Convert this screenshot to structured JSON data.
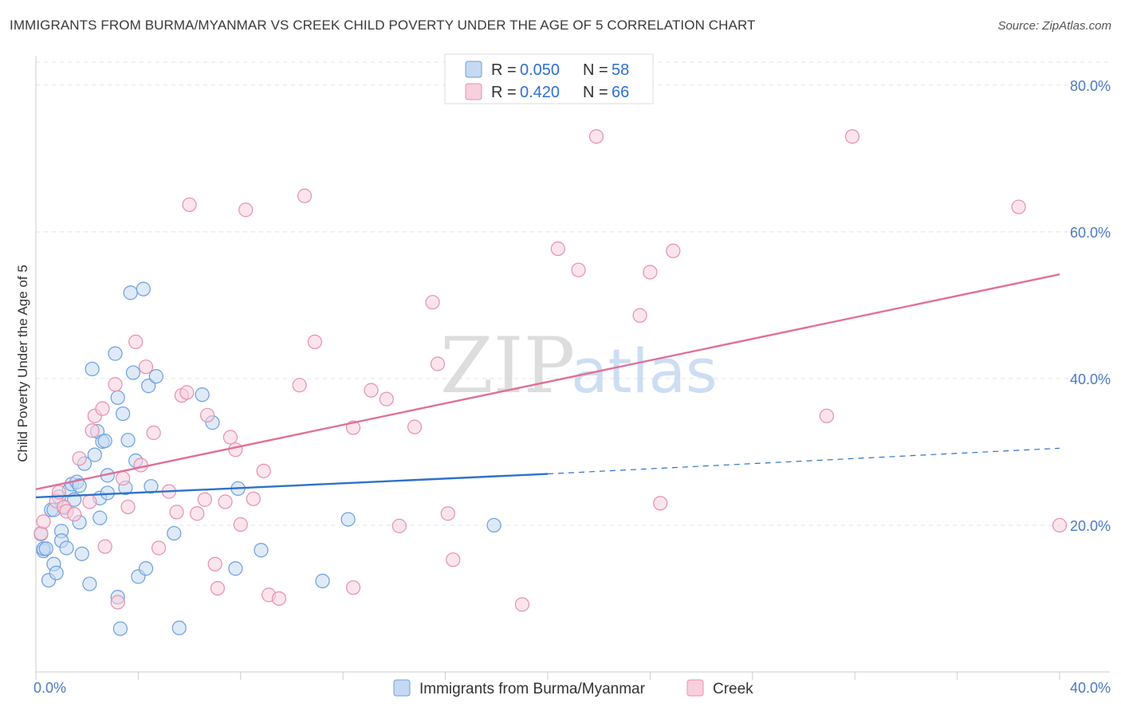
{
  "header": {
    "title": "IMMIGRANTS FROM BURMA/MYANMAR VS CREEK CHILD POVERTY UNDER THE AGE OF 5 CORRELATION CHART",
    "source": "Source: ZipAtlas.com"
  },
  "watermark": {
    "zip": "ZIP",
    "atlas": "atlas"
  },
  "chart_data": {
    "type": "scatter",
    "title": "IMMIGRANTS FROM BURMA/MYANMAR VS CREEK CHILD POVERTY UNDER THE AGE OF 5 CORRELATION CHART",
    "xlabel": "",
    "ylabel": "Child Poverty Under the Age of 5",
    "xlim": [
      0,
      40
    ],
    "ylim": [
      0,
      84
    ],
    "x_tick_labels": [
      "0.0%",
      "40.0%"
    ],
    "y_ticks": [
      20,
      40,
      60,
      80
    ],
    "y_tick_labels": [
      "20.0%",
      "40.0%",
      "60.0%",
      "80.0%"
    ],
    "grid": true,
    "legend_placement": "top-center",
    "stats": [
      {
        "r_label": "R =",
        "r": "0.050",
        "n_label": "N =",
        "n": "58"
      },
      {
        "r_label": "R =",
        "r": "0.420",
        "n_label": "N =",
        "n": "66"
      }
    ],
    "series": [
      {
        "name": "Immigrants from Burma/Myanmar",
        "color": "#6a9fe0",
        "fill": "#c5d9f3",
        "line_color": "#2d72c9",
        "trend": {
          "x0": 0,
          "y0": 23.8,
          "x1": 20,
          "y1": 27.0,
          "dash_to_x": 40,
          "dash_to_y": 30.5
        },
        "points": [
          [
            0.2,
            18.8
          ],
          [
            0.3,
            16.5
          ],
          [
            0.3,
            16.8
          ],
          [
            0.4,
            16.8
          ],
          [
            0.5,
            12.5
          ],
          [
            0.6,
            22.1
          ],
          [
            0.7,
            22.1
          ],
          [
            0.7,
            14.7
          ],
          [
            0.8,
            13.5
          ],
          [
            0.9,
            23.9
          ],
          [
            1.0,
            19.2
          ],
          [
            1.0,
            17.9
          ],
          [
            1.1,
            22.4
          ],
          [
            1.2,
            16.9
          ],
          [
            1.3,
            24.8
          ],
          [
            1.4,
            25.6
          ],
          [
            1.5,
            23.5
          ],
          [
            1.6,
            25.9
          ],
          [
            1.7,
            25.4
          ],
          [
            1.7,
            20.4
          ],
          [
            1.8,
            16.1
          ],
          [
            1.9,
            28.4
          ],
          [
            2.1,
            12.0
          ],
          [
            2.2,
            41.3
          ],
          [
            2.3,
            29.6
          ],
          [
            2.4,
            32.8
          ],
          [
            2.5,
            21.0
          ],
          [
            2.5,
            23.7
          ],
          [
            2.6,
            31.4
          ],
          [
            2.7,
            31.5
          ],
          [
            2.8,
            24.4
          ],
          [
            2.8,
            26.8
          ],
          [
            3.1,
            43.4
          ],
          [
            3.2,
            37.4
          ],
          [
            3.2,
            10.2
          ],
          [
            3.3,
            5.9
          ],
          [
            3.4,
            35.2
          ],
          [
            3.5,
            25.1
          ],
          [
            3.6,
            31.6
          ],
          [
            3.7,
            51.7
          ],
          [
            3.8,
            40.8
          ],
          [
            3.9,
            28.8
          ],
          [
            4.0,
            13.0
          ],
          [
            4.2,
            52.2
          ],
          [
            4.3,
            14.1
          ],
          [
            4.4,
            39.0
          ],
          [
            4.5,
            25.3
          ],
          [
            4.7,
            40.3
          ],
          [
            5.4,
            18.9
          ],
          [
            5.6,
            6.0
          ],
          [
            6.5,
            37.8
          ],
          [
            6.9,
            34.0
          ],
          [
            7.8,
            14.1
          ],
          [
            7.9,
            25.0
          ],
          [
            8.8,
            16.6
          ],
          [
            11.2,
            12.4
          ],
          [
            12.2,
            20.8
          ],
          [
            17.9,
            20.0
          ]
        ]
      },
      {
        "name": "Creek",
        "color": "#e890ab",
        "fill": "#f8cfdc",
        "line_color": "#e0709a",
        "trend": {
          "x0": 0,
          "y0": 24.9,
          "x1": 40,
          "y1": 54.2
        },
        "points": [
          [
            0.2,
            18.9
          ],
          [
            0.3,
            20.5
          ],
          [
            0.8,
            23.3
          ],
          [
            0.9,
            24.5
          ],
          [
            1.1,
            22.5
          ],
          [
            1.2,
            21.9
          ],
          [
            1.5,
            21.5
          ],
          [
            1.7,
            29.1
          ],
          [
            2.1,
            23.2
          ],
          [
            2.2,
            32.9
          ],
          [
            2.3,
            34.9
          ],
          [
            2.6,
            35.9
          ],
          [
            2.7,
            17.1
          ],
          [
            3.1,
            39.2
          ],
          [
            3.2,
            9.5
          ],
          [
            3.4,
            26.4
          ],
          [
            3.6,
            22.5
          ],
          [
            3.9,
            45.0
          ],
          [
            4.1,
            28.2
          ],
          [
            4.3,
            41.6
          ],
          [
            4.6,
            32.6
          ],
          [
            4.8,
            16.9
          ],
          [
            5.2,
            24.6
          ],
          [
            5.5,
            21.8
          ],
          [
            5.7,
            37.7
          ],
          [
            5.9,
            38.1
          ],
          [
            6.0,
            63.7
          ],
          [
            6.3,
            21.6
          ],
          [
            6.6,
            23.5
          ],
          [
            6.7,
            35.0
          ],
          [
            7.0,
            14.7
          ],
          [
            7.1,
            11.4
          ],
          [
            7.4,
            23.2
          ],
          [
            7.6,
            32.0
          ],
          [
            7.8,
            30.3
          ],
          [
            8.0,
            20.1
          ],
          [
            8.2,
            63.0
          ],
          [
            8.5,
            23.6
          ],
          [
            8.9,
            27.4
          ],
          [
            9.1,
            10.5
          ],
          [
            9.5,
            10.0
          ],
          [
            10.3,
            39.1
          ],
          [
            10.5,
            64.9
          ],
          [
            10.9,
            45.0
          ],
          [
            12.4,
            11.5
          ],
          [
            12.4,
            33.3
          ],
          [
            13.1,
            38.4
          ],
          [
            13.7,
            37.2
          ],
          [
            14.2,
            19.9
          ],
          [
            14.8,
            33.4
          ],
          [
            15.5,
            50.4
          ],
          [
            15.7,
            42.0
          ],
          [
            16.1,
            21.6
          ],
          [
            16.3,
            15.3
          ],
          [
            19.0,
            9.2
          ],
          [
            20.4,
            57.7
          ],
          [
            21.2,
            54.8
          ],
          [
            21.9,
            73.0
          ],
          [
            23.6,
            48.6
          ],
          [
            24.0,
            54.5
          ],
          [
            24.4,
            23.0
          ],
          [
            24.9,
            57.4
          ],
          [
            30.9,
            34.9
          ],
          [
            31.9,
            73.0
          ],
          [
            38.4,
            63.4
          ],
          [
            40.0,
            20.0
          ]
        ]
      }
    ]
  }
}
